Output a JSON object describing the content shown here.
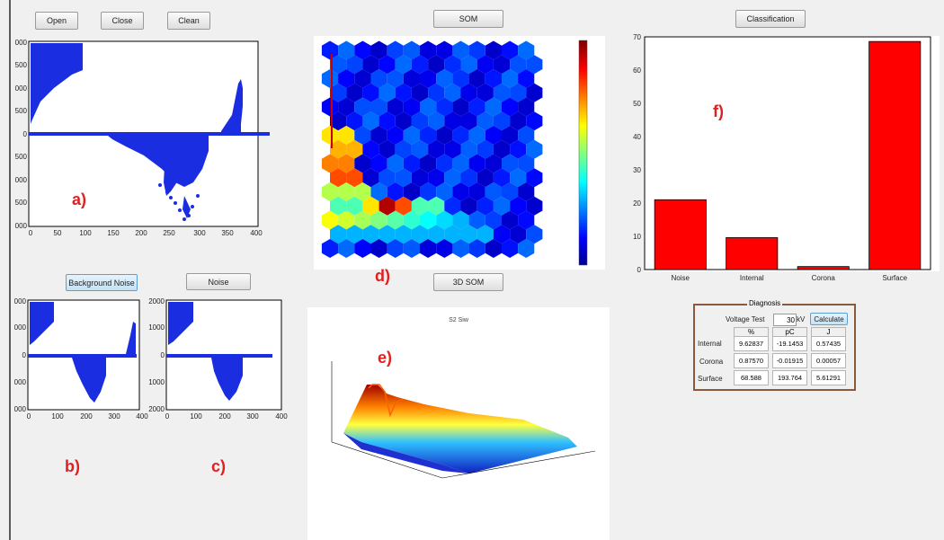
{
  "toolbar": {
    "open": "Open",
    "close": "Close",
    "clean": "Clean",
    "som": "SOM",
    "classification": "Classification",
    "background_noise": "Background Noise",
    "noise": "Noise",
    "som3d": "3D SOM"
  },
  "labels": {
    "a": "a)",
    "b": "b)",
    "c": "c)",
    "d": "d)",
    "e": "e)",
    "f": "f)"
  },
  "plot_a": {
    "xticks": [
      "0",
      "50",
      "100",
      "150",
      "200",
      "250",
      "300",
      "350",
      "400"
    ],
    "yticks": [
      "000",
      "500",
      "000",
      "500",
      "0",
      "500",
      "000",
      "500",
      "000"
    ]
  },
  "plot_b": {
    "xticks": [
      "0",
      "100",
      "200",
      "300",
      "400"
    ],
    "yticks": [
      "000",
      "000",
      "0",
      "000",
      "000"
    ]
  },
  "plot_c": {
    "xticks": [
      "0",
      "100",
      "200",
      "300",
      "400"
    ],
    "yticks": [
      "2000",
      "1000",
      "0",
      "1000",
      "2000"
    ]
  },
  "som3d": {
    "title": "S2 Siw"
  },
  "diagnosis": {
    "title": "Diagnosis",
    "voltage_label": "Voltage Test",
    "voltage_value": "30",
    "voltage_unit": "kV",
    "calculate": "Calculate",
    "headers": [
      "%",
      "pC",
      "J"
    ],
    "rows": [
      {
        "name": "Internal",
        "pct": "9.62837",
        "pc": "-19.1453",
        "j": "0.57435"
      },
      {
        "name": "Corona",
        "pct": "0.87570",
        "pc": "-0.01915",
        "j": "0.00057"
      },
      {
        "name": "Surface",
        "pct": "68.588",
        "pc": "193.764",
        "j": "5.61291"
      }
    ]
  },
  "chart_data": {
    "type": "bar",
    "categories": [
      "Noise",
      "Internal",
      "Corona",
      "Surface"
    ],
    "values": [
      21,
      9.6,
      0.9,
      68.6
    ],
    "ylim": [
      0,
      70
    ],
    "yticks": [
      "0",
      "10",
      "20",
      "30",
      "40",
      "50",
      "60",
      "70"
    ],
    "bar_color": "#ff0000"
  }
}
